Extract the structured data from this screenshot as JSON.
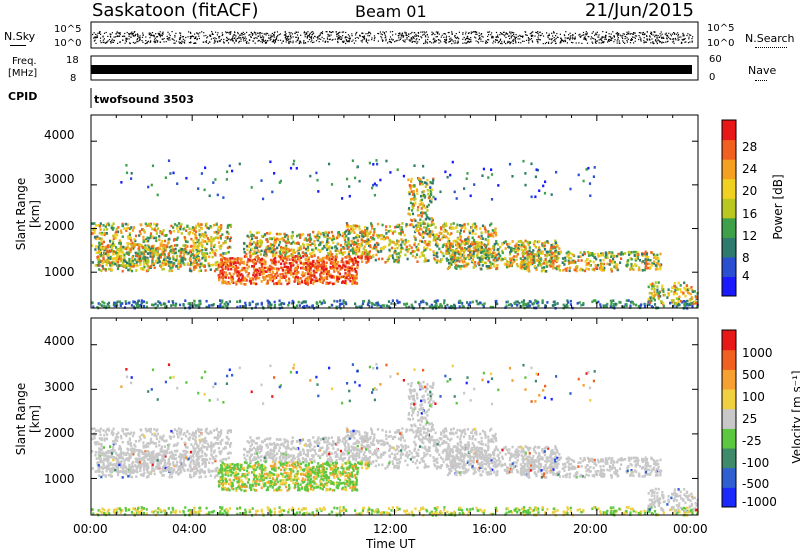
{
  "header": {
    "station": "Saskatoon (fitACF)",
    "beam": "Beam 01",
    "date": "21/Jun/2015"
  },
  "top_panels": {
    "nsky_label": "N.Sky",
    "nsearch_label": "N.Search",
    "nsky_ticks": [
      "10^5",
      "10^0"
    ],
    "nsearch_ticks": [
      "10^5",
      "10^0"
    ],
    "freq_label_1": "Freq.",
    "freq_label_2": "[MHz]",
    "freq_ticks": [
      "18",
      "8"
    ],
    "nave_label": "Nave",
    "nave_ticks": [
      "60",
      "0"
    ],
    "cpid_label": "CPID",
    "cpid_value": "twofsound 3503"
  },
  "chart_data": [
    {
      "type": "heatmap",
      "panel": "power",
      "ylabel": "Slant Range [km]",
      "ylim": [
        180,
        4600
      ],
      "yticks": [
        1000,
        2000,
        3000,
        4000
      ],
      "xlim": [
        0,
        24
      ],
      "colorbar_label": "Power [dB]",
      "colorbar_ticks": [
        "28",
        "24",
        "20",
        "16",
        "12",
        "8",
        "4"
      ],
      "colors": [
        "#1a1aff",
        "#2a4fd0",
        "#2f7a6e",
        "#3fa04a",
        "#b8c820",
        "#f0d020",
        "#f5a020",
        "#f06020",
        "#e81818"
      ]
    },
    {
      "type": "heatmap",
      "panel": "velocity",
      "ylabel": "Slant Range [km]",
      "ylim": [
        180,
        4600
      ],
      "yticks": [
        1000,
        2000,
        3000,
        4000
      ],
      "xlim": [
        0,
        24
      ],
      "xlabel": "Time UT",
      "xticks": [
        "00:00",
        "04:00",
        "08:00",
        "12:00",
        "16:00",
        "20:00",
        "00:00"
      ],
      "colorbar_label_main": "Velocity",
      "colorbar_label_unit": "[m s⁻¹]",
      "colorbar_ticks": [
        "1000",
        "500",
        "100",
        "25",
        "-25",
        "-100",
        "-500",
        "-1000"
      ],
      "colors": [
        "#1a2aff",
        "#2f5fd0",
        "#3f8a6a",
        "#5cc840",
        "#c8c8c8",
        "#f0d040",
        "#f5a030",
        "#f06020",
        "#e81818"
      ]
    }
  ]
}
